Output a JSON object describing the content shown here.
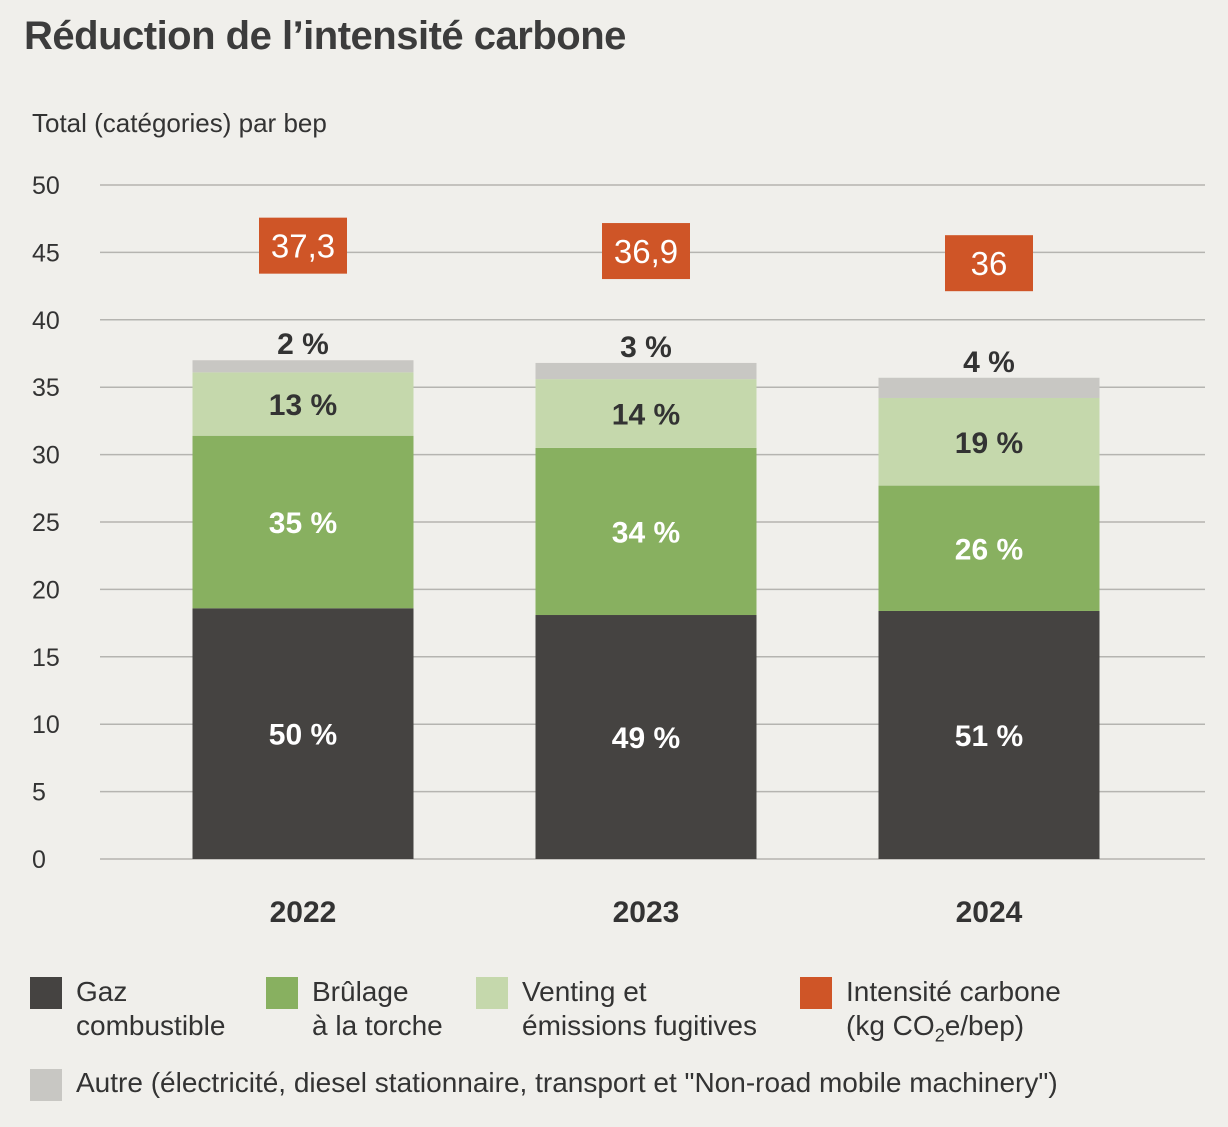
{
  "chart_data": {
    "type": "bar",
    "stacked": true,
    "title": "Réduction de l’intensité carbone",
    "ylabel": "Total (catégories) par bep",
    "xlabel": "",
    "ylim": [
      0,
      50
    ],
    "yticks": [
      0,
      5,
      10,
      15,
      20,
      25,
      30,
      35,
      40,
      45,
      50
    ],
    "grid": true,
    "categories": [
      "2022",
      "2023",
      "2024"
    ],
    "series": [
      {
        "name": "Gaz combustible",
        "color": "#454341",
        "values": [
          18.6,
          18.1,
          18.4
        ],
        "labels": [
          "50 %",
          "49 %",
          "51 %"
        ],
        "label_color": "#ffffff"
      },
      {
        "name": "Brûlage à la torche",
        "color": "#88b060",
        "values": [
          12.8,
          12.4,
          9.3
        ],
        "labels": [
          "35 %",
          "34 %",
          "26 %"
        ],
        "label_color": "#ffffff"
      },
      {
        "name": "Venting et émissions fugitives",
        "color": "#c5d8ac",
        "values": [
          4.7,
          5.1,
          6.5
        ],
        "labels": [
          "13 %",
          "14 %",
          "19 %"
        ],
        "label_color": "#333333"
      },
      {
        "name": "Autre (électricité, diesel stationnaire, transport et \"Non-road mobile machinery\")",
        "color": "#c8c7c3",
        "values": [
          0.9,
          1.2,
          1.5
        ],
        "labels": [
          "2 %",
          "3 %",
          "4 %"
        ],
        "label_color": "#333333"
      }
    ],
    "intensity": {
      "name": "Intensité carbone (kg CO₂e/bep)",
      "color": "#cf5527",
      "values": [
        37.3,
        36.9,
        36
      ],
      "labels": [
        "37,3",
        "36,9",
        "36"
      ]
    },
    "legend_position": "bottom"
  },
  "legend": {
    "gaz_l1": "Gaz",
    "gaz_l2": "combustible",
    "brulage_l1": "Brûlage",
    "brulage_l2": "à la torche",
    "venting_l1": "Venting et",
    "venting_l2": "émissions fugitives",
    "intensite_l1": "Intensité carbone",
    "intensite_l2_a": "(kg CO",
    "intensite_l2_sub": "2",
    "intensite_l2_b": "e/bep)",
    "autre": "Autre (électricité, diesel stationnaire, transport et \"Non-road mobile machinery\")"
  }
}
